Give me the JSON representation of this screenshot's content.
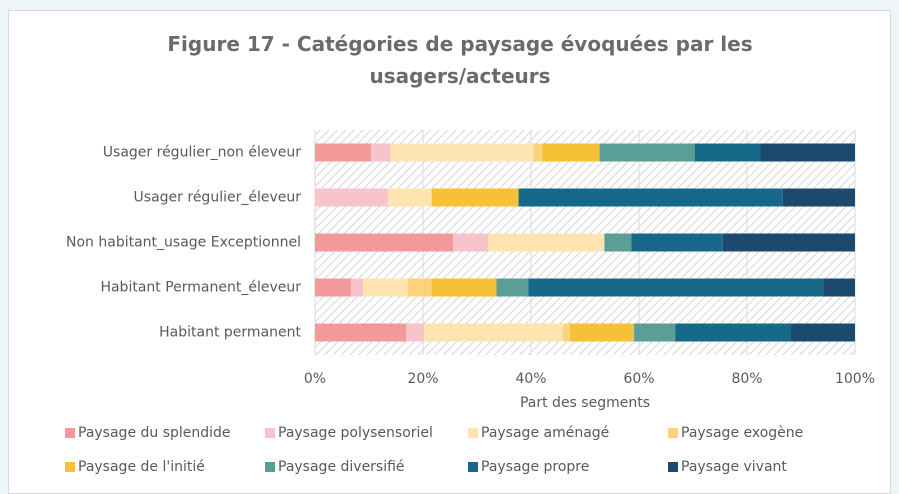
{
  "chart_data": {
    "type": "stacked-bar-horizontal",
    "title": "Figure 17 - Catégories de paysage évoquées par les usagers/acteurs",
    "x_label": "Part des segments",
    "categories": [
      "Usager régulier_non éleveur",
      "Usager régulier_éleveur",
      "Non habitant_usage Exceptionnel",
      "Habitant Permanent_éleveur",
      "Habitant permanent"
    ],
    "series": [
      {
        "name": "Paysage du splendide",
        "color": "#f4999a",
        "values": [
          10.4,
          0,
          25.6,
          6.7,
          16.9
        ]
      },
      {
        "name": "Paysage polysensoriel",
        "color": "#f8c4cb",
        "values": [
          3.5,
          13.5,
          6.5,
          2.2,
          3.3
        ]
      },
      {
        "name": "Paysage aménagé",
        "color": "#fde4b0",
        "values": [
          26.5,
          8.1,
          21.5,
          8.3,
          25.7
        ]
      },
      {
        "name": "Paysage exogène",
        "color": "#fcd27a",
        "values": [
          1.7,
          0,
          0,
          4.4,
          1.3
        ]
      },
      {
        "name": "Paysage de l'initié",
        "color": "#f6c136",
        "values": [
          10.6,
          16.1,
          0,
          12,
          11.9
        ]
      },
      {
        "name": "Paysage diversifié",
        "color": "#5a9e96",
        "values": [
          17.6,
          0,
          5,
          5.9,
          7.6
        ]
      },
      {
        "name": "Paysage propre",
        "color": "#17698a",
        "values": [
          12.2,
          48.9,
          16.9,
          54.6,
          21.3
        ]
      },
      {
        "name": "Paysage vivant",
        "color": "#1b4a6e",
        "values": [
          17.5,
          13.4,
          24.5,
          5.9,
          12
        ]
      }
    ],
    "xlim": [
      0,
      100
    ],
    "xticks": [
      {
        "value": 0,
        "label": "0%"
      },
      {
        "value": 20,
        "label": "20%"
      },
      {
        "value": 40,
        "label": "40%"
      },
      {
        "value": 60,
        "label": "60%"
      },
      {
        "value": 80,
        "label": "80%"
      },
      {
        "value": 100,
        "label": "100%"
      }
    ],
    "grid": true,
    "legend": "bottom"
  }
}
